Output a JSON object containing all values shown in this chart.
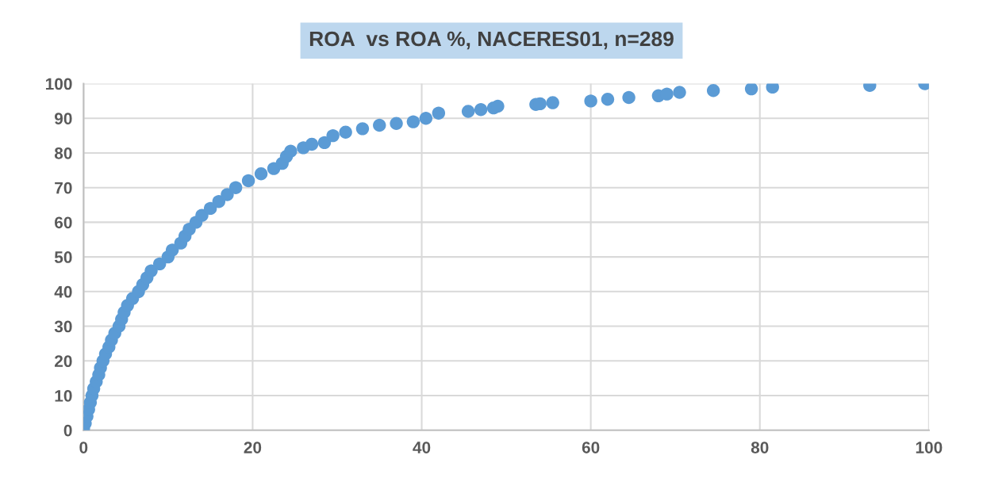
{
  "chart_data": {
    "type": "scatter",
    "title": "ROA  vs ROA %, NACERES01, n=289",
    "x": [
      0,
      0.2,
      0.4,
      0.6,
      0.8,
      1,
      1.2,
      1.5,
      1.8,
      2,
      2.3,
      2.6,
      3,
      3.3,
      3.7,
      4.2,
      4.5,
      4.8,
      5.2,
      5.8,
      6.5,
      7,
      7.5,
      8,
      9,
      10,
      10.5,
      11.5,
      12,
      12.5,
      13.3,
      14,
      15,
      16,
      17,
      18,
      19.5,
      21,
      22.5,
      23.5,
      24,
      24.5,
      26,
      27,
      28.5,
      29.5,
      31,
      33,
      35,
      37,
      39,
      40.5,
      42,
      45.5,
      47,
      48.5,
      49,
      53.5,
      54,
      55.5,
      60,
      62,
      64.5,
      68,
      69,
      70.5,
      74.5,
      79,
      81.5,
      93,
      99.5
    ],
    "series": [
      {
        "color": "#5b9bd5",
        "values": [
          0.5,
          2,
          4,
          6,
          8,
          10,
          12,
          14,
          16,
          18,
          20,
          22,
          24,
          26,
          28,
          30,
          32,
          34,
          36,
          38,
          40,
          42,
          44,
          46,
          48,
          50,
          52,
          54,
          56,
          58,
          60,
          62,
          64,
          66,
          68,
          70,
          72,
          74,
          75.5,
          77,
          79,
          80.5,
          81.5,
          82.5,
          83,
          85,
          86,
          87,
          88,
          88.5,
          89,
          90,
          91.5,
          92,
          92.5,
          93,
          93.5,
          94,
          94.2,
          94.5,
          95,
          95.5,
          96,
          96.5,
          97,
          97.5,
          98,
          98.5,
          99,
          99.5,
          100
        ]
      }
    ],
    "xlim": [
      0,
      100
    ],
    "ylim": [
      0,
      100
    ],
    "xticks": [
      0,
      20,
      40,
      60,
      80,
      100
    ],
    "yticks": [
      0,
      10,
      20,
      30,
      40,
      50,
      60,
      70,
      80,
      90,
      100
    ],
    "grid": true,
    "marker": "circle",
    "legend": false
  }
}
